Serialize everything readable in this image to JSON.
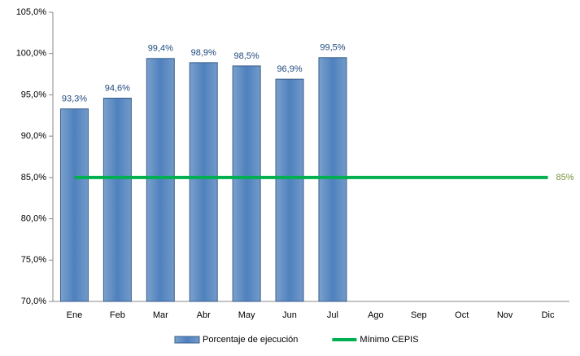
{
  "chart_data": {
    "type": "bar",
    "categories": [
      "Ene",
      "Feb",
      "Mar",
      "Abr",
      "May",
      "Jun",
      "Jul",
      "Ago",
      "Sep",
      "Oct",
      "Nov",
      "Dic"
    ],
    "series": [
      {
        "name": "Porcentaje de ejecución",
        "type": "bar",
        "color": "#4f81bd",
        "values": [
          93.3,
          94.6,
          99.4,
          98.9,
          98.5,
          96.9,
          99.5,
          null,
          null,
          null,
          null,
          null
        ],
        "value_labels": [
          "93,3%",
          "94,6%",
          "99,4%",
          "98,9%",
          "98,5%",
          "96,9%",
          "99,5%",
          null,
          null,
          null,
          null,
          null
        ]
      },
      {
        "name": "Mínimo CEPIS",
        "type": "line",
        "color": "#00b050",
        "values": [
          85,
          85,
          85,
          85,
          85,
          85,
          85,
          85,
          85,
          85,
          85,
          85
        ],
        "value_labels": [
          null,
          null,
          null,
          null,
          null,
          null,
          null,
          null,
          null,
          null,
          null,
          "85%"
        ]
      }
    ],
    "ylim": [
      70,
      105
    ],
    "yticks": [
      {
        "value": 70,
        "label": "70,0%"
      },
      {
        "value": 75,
        "label": "75,0%"
      },
      {
        "value": 80,
        "label": "80,0%"
      },
      {
        "value": 85,
        "label": "85,0%"
      },
      {
        "value": 90,
        "label": "90,0%"
      },
      {
        "value": 95,
        "label": "95,0%"
      },
      {
        "value": 100,
        "label": "100,0%"
      },
      {
        "value": 105,
        "label": "105,0%"
      }
    ],
    "grid": false,
    "legend": "bottom"
  }
}
